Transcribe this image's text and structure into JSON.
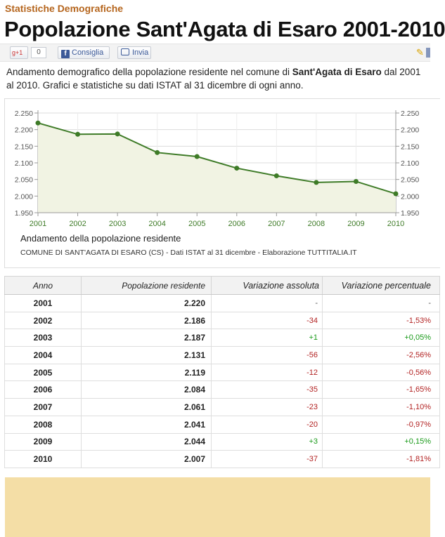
{
  "header": {
    "kicker": "Statistiche Demografiche",
    "title": "Popolazione Sant'Agata di Esaro 2001-2010"
  },
  "social": {
    "gplus_label": "+1",
    "gplus_count": "0",
    "facebook_label": "Consiglia",
    "share_label": "Invia"
  },
  "intro": {
    "text_before": "Andamento demografico della popolazione residente nel comune di ",
    "place": "Sant'Agata di Esaro",
    "text_after": " dal 2001 al 2010. Grafici e statistiche su dati ISTAT al 31 dicembre di ogni anno."
  },
  "chart": {
    "caption": "Andamento della popolazione residente",
    "source": "COMUNE DI SANT'AGATA DI ESARO (CS) - Dati ISTAT al 31 dicembre - Elaborazione TUTTITALIA.IT"
  },
  "chart_data": {
    "type": "area",
    "x": [
      "2001",
      "2002",
      "2003",
      "2004",
      "2005",
      "2006",
      "2007",
      "2008",
      "2009",
      "2010"
    ],
    "values": [
      2220,
      2186,
      2187,
      2131,
      2119,
      2084,
      2061,
      2041,
      2044,
      2007
    ],
    "ylim": [
      1950,
      2250
    ],
    "yticks": [
      "1.950",
      "2.000",
      "2.050",
      "2.100",
      "2.150",
      "2.200",
      "2.250"
    ],
    "title": "Andamento della popolazione residente",
    "grid": true,
    "line_color": "#3e7b27",
    "fill_color": "#f1f3e3"
  },
  "table": {
    "headers": [
      "Anno",
      "Popolazione residente",
      "Variazione assoluta",
      "Variazione percentuale"
    ],
    "rows": [
      {
        "anno": "2001",
        "pop": "2.220",
        "abs": "-",
        "pct": "-",
        "trend": "neu"
      },
      {
        "anno": "2002",
        "pop": "2.186",
        "abs": "-34",
        "pct": "-1,53%",
        "trend": "neg"
      },
      {
        "anno": "2003",
        "pop": "2.187",
        "abs": "+1",
        "pct": "+0,05%",
        "trend": "pos"
      },
      {
        "anno": "2004",
        "pop": "2.131",
        "abs": "-56",
        "pct": "-2,56%",
        "trend": "neg"
      },
      {
        "anno": "2005",
        "pop": "2.119",
        "abs": "-12",
        "pct": "-0,56%",
        "trend": "neg"
      },
      {
        "anno": "2006",
        "pop": "2.084",
        "abs": "-35",
        "pct": "-1,65%",
        "trend": "neg"
      },
      {
        "anno": "2007",
        "pop": "2.061",
        "abs": "-23",
        "pct": "-1,10%",
        "trend": "neg"
      },
      {
        "anno": "2008",
        "pop": "2.041",
        "abs": "-20",
        "pct": "-0,97%",
        "trend": "neg"
      },
      {
        "anno": "2009",
        "pop": "2.044",
        "abs": "+3",
        "pct": "+0,15%",
        "trend": "pos"
      },
      {
        "anno": "2010",
        "pop": "2.007",
        "abs": "-37",
        "pct": "-1,81%",
        "trend": "neg"
      }
    ]
  },
  "colors": {
    "kicker": "#b5651d",
    "negative": "#b22222",
    "positive": "#1a9a1a",
    "ad_background": "#f4dea6"
  }
}
